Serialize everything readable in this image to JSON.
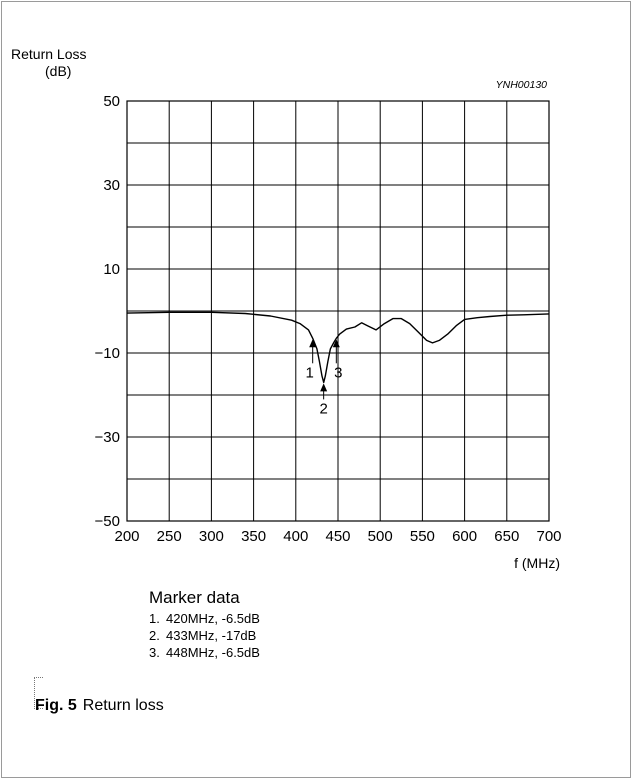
{
  "chart_data": {
    "type": "line",
    "title": "",
    "ylabel_line1": "Return Loss",
    "ylabel_line2": "(dB)",
    "xlabel": "f (MHz)",
    "code": "YNH00130",
    "xlim": [
      200,
      700
    ],
    "ylim": [
      -50,
      50
    ],
    "x_ticks": [
      "200",
      "250",
      "300",
      "350",
      "400",
      "450",
      "500",
      "550",
      "600",
      "650",
      "700"
    ],
    "y_ticks": [
      "50",
      "30",
      "10",
      "−10",
      "−30",
      "−50"
    ],
    "grid": true,
    "series": [
      {
        "x": [
          200,
          250,
          300,
          340,
          370,
          395,
          405,
          415,
          420,
          425,
          428,
          431,
          433,
          435,
          438,
          441,
          445,
          448,
          452,
          460,
          470,
          478,
          485,
          495,
          505,
          515,
          525,
          535,
          545,
          555,
          562,
          570,
          580,
          590,
          600,
          615,
          630,
          650,
          670,
          700
        ],
        "y": [
          -0.5,
          -0.3,
          -0.3,
          -0.6,
          -1.2,
          -2.2,
          -3.0,
          -4.5,
          -6.5,
          -9.0,
          -12.0,
          -15.5,
          -17.0,
          -15.5,
          -12.0,
          -9.0,
          -7.5,
          -6.5,
          -5.5,
          -4.3,
          -3.8,
          -2.8,
          -3.5,
          -4.5,
          -3.0,
          -1.8,
          -1.8,
          -3.0,
          -5.0,
          -7.0,
          -7.6,
          -7.0,
          -5.5,
          -3.5,
          -2.0,
          -1.6,
          -1.3,
          -1.0,
          -0.9,
          -0.7
        ]
      }
    ],
    "markers": [
      {
        "label": "1",
        "x": 420,
        "y": -6.5
      },
      {
        "label": "2",
        "x": 433,
        "y": -17
      },
      {
        "label": "3",
        "x": 448,
        "y": -6.5
      }
    ]
  },
  "marker_section": {
    "title": "Marker data",
    "items": [
      {
        "num": "1.",
        "text": "420MHz, -6.5dB"
      },
      {
        "num": "2.",
        "text": "433MHz, -17dB"
      },
      {
        "num": "3.",
        "text": "448MHz, -6.5dB"
      }
    ]
  },
  "figure": {
    "label": "Fig. 5",
    "caption": "Return loss"
  }
}
